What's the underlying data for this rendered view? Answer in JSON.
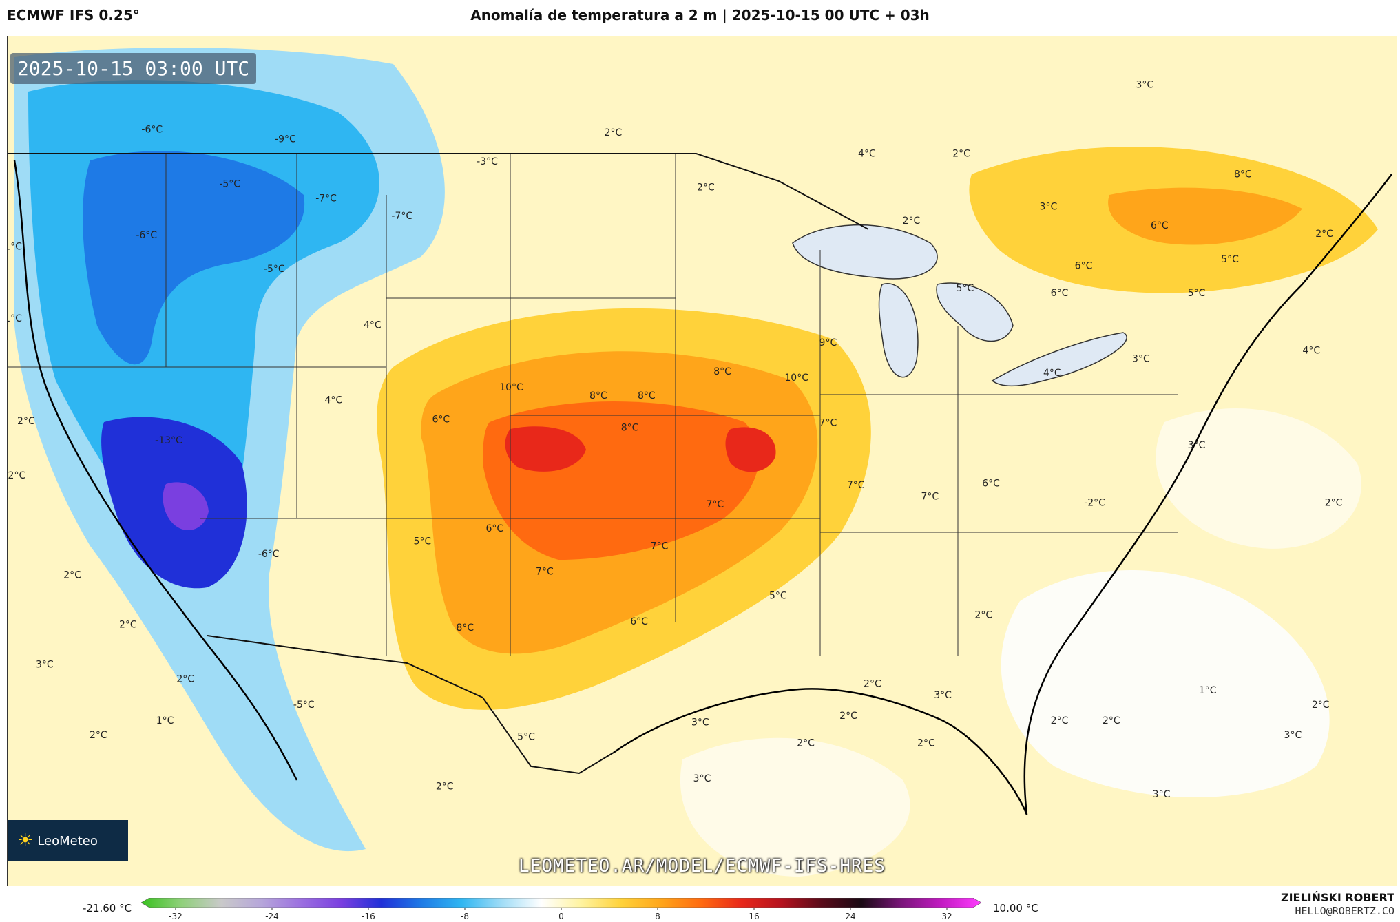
{
  "header": {
    "model": "ECMWF IFS 0.25°",
    "title": "Anomalía de temperatura a 2 m | 2025-10-15 00 UTC + 03h"
  },
  "map": {
    "valid_time": "2025-10-15 03:00 UTC",
    "logo_text": "LeoMeteo",
    "site_url": "LEOMETEO.AR/MODEL/ECMWF-IFS-HRES",
    "labels": [
      {
        "text": "-6°C",
        "lon": -123.2,
        "lat": 49.0
      },
      {
        "text": "-9°C",
        "lon": -116.0,
        "lat": 48.4
      },
      {
        "text": "-5°C",
        "lon": -119.0,
        "lat": 45.6
      },
      {
        "text": "-7°C",
        "lon": -113.8,
        "lat": 44.7
      },
      {
        "text": "-7°C",
        "lon": -109.7,
        "lat": 43.6
      },
      {
        "text": "-6°C",
        "lon": -123.5,
        "lat": 42.4
      },
      {
        "text": "-5°C",
        "lon": -116.6,
        "lat": 40.3
      },
      {
        "text": "1°C",
        "lon": -130.7,
        "lat": 41.7
      },
      {
        "text": "1°C",
        "lon": -130.7,
        "lat": 37.2
      },
      {
        "text": "-3°C",
        "lon": -105.1,
        "lat": 47.0
      },
      {
        "text": "2°C",
        "lon": -98.3,
        "lat": 48.8
      },
      {
        "text": "2°C",
        "lon": -93.3,
        "lat": 45.4
      },
      {
        "text": "4°C",
        "lon": -84.6,
        "lat": 47.5
      },
      {
        "text": "2°C",
        "lon": -79.5,
        "lat": 47.5
      },
      {
        "text": "3°C",
        "lon": -69.6,
        "lat": 51.8
      },
      {
        "text": "2°C",
        "lon": -82.2,
        "lat": 43.3
      },
      {
        "text": "3°C",
        "lon": -74.8,
        "lat": 44.2
      },
      {
        "text": "8°C",
        "lon": -64.3,
        "lat": 46.2
      },
      {
        "text": "6°C",
        "lon": -68.8,
        "lat": 43.0
      },
      {
        "text": "2°C",
        "lon": -59.9,
        "lat": 42.5
      },
      {
        "text": "5°C",
        "lon": -65.0,
        "lat": 40.9
      },
      {
        "text": "6°C",
        "lon": -72.9,
        "lat": 40.5
      },
      {
        "text": "5°C",
        "lon": -66.8,
        "lat": 38.8
      },
      {
        "text": "6°C",
        "lon": -74.2,
        "lat": 38.8
      },
      {
        "text": "5°C",
        "lon": -79.3,
        "lat": 39.1
      },
      {
        "text": "4°C",
        "lon": -111.3,
        "lat": 36.8
      },
      {
        "text": "4°C",
        "lon": -60.6,
        "lat": 35.2
      },
      {
        "text": "3°C",
        "lon": -69.8,
        "lat": 34.7
      },
      {
        "text": "4°C",
        "lon": -74.6,
        "lat": 33.8
      },
      {
        "text": "9°C",
        "lon": -86.7,
        "lat": 35.7
      },
      {
        "text": "8°C",
        "lon": -92.4,
        "lat": 33.9
      },
      {
        "text": "10°C",
        "lon": -88.4,
        "lat": 33.5
      },
      {
        "text": "10°C",
        "lon": -103.8,
        "lat": 32.9
      },
      {
        "text": "8°C",
        "lon": -99.1,
        "lat": 32.4
      },
      {
        "text": "8°C",
        "lon": -96.5,
        "lat": 32.4
      },
      {
        "text": "8°C",
        "lon": -97.4,
        "lat": 30.4
      },
      {
        "text": "7°C",
        "lon": -86.7,
        "lat": 30.7
      },
      {
        "text": "6°C",
        "lon": -107.6,
        "lat": 30.9
      },
      {
        "text": "4°C",
        "lon": -113.4,
        "lat": 32.1
      },
      {
        "text": "-13°C",
        "lon": -122.3,
        "lat": 29.6
      },
      {
        "text": "2°C",
        "lon": -130.0,
        "lat": 30.8
      },
      {
        "text": "2°C",
        "lon": -130.5,
        "lat": 27.4
      },
      {
        "text": "3°C",
        "lon": -66.8,
        "lat": 29.3
      },
      {
        "text": "7°C",
        "lon": -85.2,
        "lat": 26.8
      },
      {
        "text": "7°C",
        "lon": -81.2,
        "lat": 26.1
      },
      {
        "text": "6°C",
        "lon": -77.9,
        "lat": 26.9
      },
      {
        "text": "7°C",
        "lon": -92.8,
        "lat": 25.6
      },
      {
        "text": "-2°C",
        "lon": -72.3,
        "lat": 25.7
      },
      {
        "text": "2°C",
        "lon": -59.4,
        "lat": 25.7
      },
      {
        "text": "6°C",
        "lon": -104.7,
        "lat": 24.1
      },
      {
        "text": "7°C",
        "lon": -95.8,
        "lat": 23.0
      },
      {
        "text": "5°C",
        "lon": -108.6,
        "lat": 23.3
      },
      {
        "text": "-6°C",
        "lon": -116.9,
        "lat": 22.5
      },
      {
        "text": "2°C",
        "lon": -127.5,
        "lat": 21.2
      },
      {
        "text": "7°C",
        "lon": -102.0,
        "lat": 21.4
      },
      {
        "text": "5°C",
        "lon": -89.4,
        "lat": 19.9
      },
      {
        "text": "2°C",
        "lon": -78.3,
        "lat": 18.7
      },
      {
        "text": "2°C",
        "lon": -124.5,
        "lat": 18.1
      },
      {
        "text": "6°C",
        "lon": -96.9,
        "lat": 18.3
      },
      {
        "text": "8°C",
        "lon": -106.3,
        "lat": 17.9
      },
      {
        "text": "3°C",
        "lon": -129.0,
        "lat": 15.6
      },
      {
        "text": "2°C",
        "lon": -121.4,
        "lat": 14.7
      },
      {
        "text": "2°C",
        "lon": -84.3,
        "lat": 14.4
      },
      {
        "text": "1°C",
        "lon": -66.2,
        "lat": 14.0
      },
      {
        "text": "3°C",
        "lon": -80.5,
        "lat": 13.7
      },
      {
        "text": "-5°C",
        "lon": -115.0,
        "lat": 13.1
      },
      {
        "text": "2°C",
        "lon": -85.6,
        "lat": 12.4
      },
      {
        "text": "2°C",
        "lon": -74.2,
        "lat": 12.1
      },
      {
        "text": "2°C",
        "lon": -71.4,
        "lat": 12.1
      },
      {
        "text": "1°C",
        "lon": -122.5,
        "lat": 12.1
      },
      {
        "text": "3°C",
        "lon": -93.6,
        "lat": 12.0
      },
      {
        "text": "2°C",
        "lon": -60.1,
        "lat": 13.1
      },
      {
        "text": "3°C",
        "lon": -61.6,
        "lat": 11.2
      },
      {
        "text": "2°C",
        "lon": -126.1,
        "lat": 11.2
      },
      {
        "text": "5°C",
        "lon": -103.0,
        "lat": 11.1
      },
      {
        "text": "2°C",
        "lon": -87.9,
        "lat": 10.7
      },
      {
        "text": "2°C",
        "lon": -81.4,
        "lat": 10.7
      },
      {
        "text": "3°C",
        "lon": -93.5,
        "lat": 8.5
      },
      {
        "text": "2°C",
        "lon": -107.4,
        "lat": 8.0
      },
      {
        "text": "3°C",
        "lon": -68.7,
        "lat": 7.5
      }
    ]
  },
  "colorbar": {
    "min_value": "-21.60 °C",
    "max_value": "10.00 °C",
    "ticks": [
      "-32",
      "-24",
      "-16",
      "-8",
      "0",
      "8",
      "16",
      "24",
      "32"
    ],
    "colors": [
      "#39c11f",
      "#8fd07a",
      "#c9c9c9",
      "#b6a6da",
      "#9b6fe0",
      "#7a3fe0",
      "#2030d8",
      "#1e7ae6",
      "#2fb6f2",
      "#9fdcf6",
      "#ffffff",
      "#fff3a0",
      "#ffd23a",
      "#ffa51a",
      "#ff6a10",
      "#e8281a",
      "#b5121e",
      "#5a0b1a",
      "#1a0a14",
      "#7a157a",
      "#c21ac2",
      "#ff3cff"
    ]
  },
  "footer": {
    "author": "ZIELIŃSKI ROBERT",
    "email": "HELLO@ROBERTZ.CO"
  }
}
